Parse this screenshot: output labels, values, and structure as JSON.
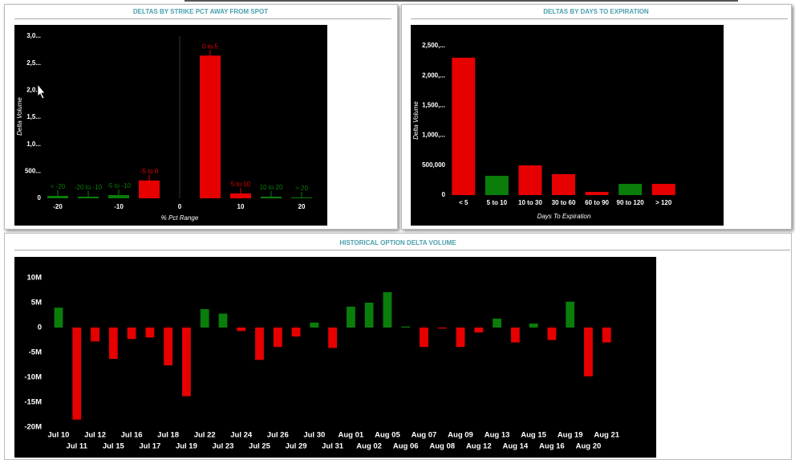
{
  "chart_data": [
    {
      "type": "bar",
      "title": "DELTAS BY STRIKE PCT AWAY FROM SPOT",
      "categories": [
        "< -20",
        "-20 to -10",
        "-5 to -10",
        "-5 to 0",
        "0 to 5",
        "5 to 10",
        "10 to 20",
        "> 20"
      ],
      "x": [
        -20,
        -15,
        -10,
        -5,
        5,
        10,
        15,
        20
      ],
      "values": [
        45000,
        30000,
        60000,
        330000,
        2640000,
        90000,
        30000,
        15000
      ],
      "colors": [
        "#0a7d0a",
        "#0a7d0a",
        "#0a7d0a",
        "#e60000",
        "#e60000",
        "#e60000",
        "#0a7d0a",
        "#0a7d0a"
      ],
      "xlim": [
        -22.5,
        22.5
      ],
      "xticks": [
        -20,
        -10,
        0,
        10,
        20
      ],
      "ylim": [
        0,
        3000000
      ],
      "yticks": [
        0,
        {
          "value": 500000,
          "label": "500..."
        },
        {
          "value": 1000000,
          "label": "1,0..."
        },
        {
          "value": 1500000,
          "label": "1,5..."
        },
        {
          "value": 2000000,
          "label": "2,0..."
        },
        {
          "value": 2500000,
          "label": "2,5..."
        },
        {
          "value": 3000000,
          "label": "3,0..."
        }
      ],
      "xlabel": "% Pct Range",
      "ylabel": "Delta Volume"
    },
    {
      "type": "bar",
      "title": "DELTAS BY DAYS TO EXPIRATION",
      "categories": [
        "< 5",
        "5 to 10",
        "10 to 30",
        "30 to 60",
        "60 to 90",
        "90 to 120",
        "> 120"
      ],
      "values": [
        2300000,
        323000,
        497000,
        350000,
        54000,
        188000,
        188000
      ],
      "colors": [
        "#e60000",
        "#0a7d0a",
        "#e60000",
        "#e60000",
        "#e60000",
        "#0a7d0a",
        "#e60000"
      ],
      "ylim": [
        0,
        2500000
      ],
      "yticks": [
        0,
        {
          "value": 500000,
          "label": "500,000"
        },
        {
          "value": 1000000,
          "label": "1,000,..."
        },
        {
          "value": 1500000,
          "label": "1,500,..."
        },
        {
          "value": 2000000,
          "label": "2,000,..."
        },
        {
          "value": 2500000,
          "label": "2,500,..."
        }
      ],
      "xlabel": "Days To Expiration",
      "ylabel": "Delta Volume"
    },
    {
      "type": "bar",
      "title": "HISTORICAL OPTION DELTA VOLUME",
      "categories": [
        "Jul 10",
        "Jul 11",
        "Jul 12",
        "Jul 15",
        "Jul 16",
        "Jul 17",
        "Jul 18",
        "Jul 19",
        "Jul 22",
        "Jul 23",
        "Jul 24",
        "Jul 25",
        "Jul 26",
        "Jul 29",
        "Jul 30",
        "Jul 31",
        "Aug 01",
        "Aug 02",
        "Aug 05",
        "Aug 06",
        "Aug 07",
        "Aug 08",
        "Aug 09",
        "Aug 12",
        "Aug 13",
        "Aug 14",
        "Aug 15",
        "Aug 16",
        "Aug 19",
        "Aug 20",
        "Aug 21"
      ],
      "values": [
        4000000,
        -18500000,
        -2800000,
        -6300000,
        -2300000,
        -2000000,
        -7600000,
        -13800000,
        3700000,
        2800000,
        -700000,
        -6500000,
        -3900000,
        -1800000,
        1000000,
        -4100000,
        4200000,
        5000000,
        7100000,
        200000,
        -3900000,
        -200000,
        -3900000,
        -1000000,
        1800000,
        -3000000,
        800000,
        -2500000,
        5200000,
        -9800000,
        -3000000
      ],
      "color_positive": "#0a7d0a",
      "color_negative": "#e60000",
      "ylim": [
        -20000000,
        10000000
      ],
      "yticks": [
        {
          "value": -20000000,
          "label": "-20M"
        },
        {
          "value": -15000000,
          "label": "-15M"
        },
        {
          "value": -10000000,
          "label": "-10M"
        },
        {
          "value": -5000000,
          "label": "-5M"
        },
        0,
        {
          "value": 5000000,
          "label": "5M"
        },
        {
          "value": 10000000,
          "label": "10M"
        }
      ]
    }
  ]
}
